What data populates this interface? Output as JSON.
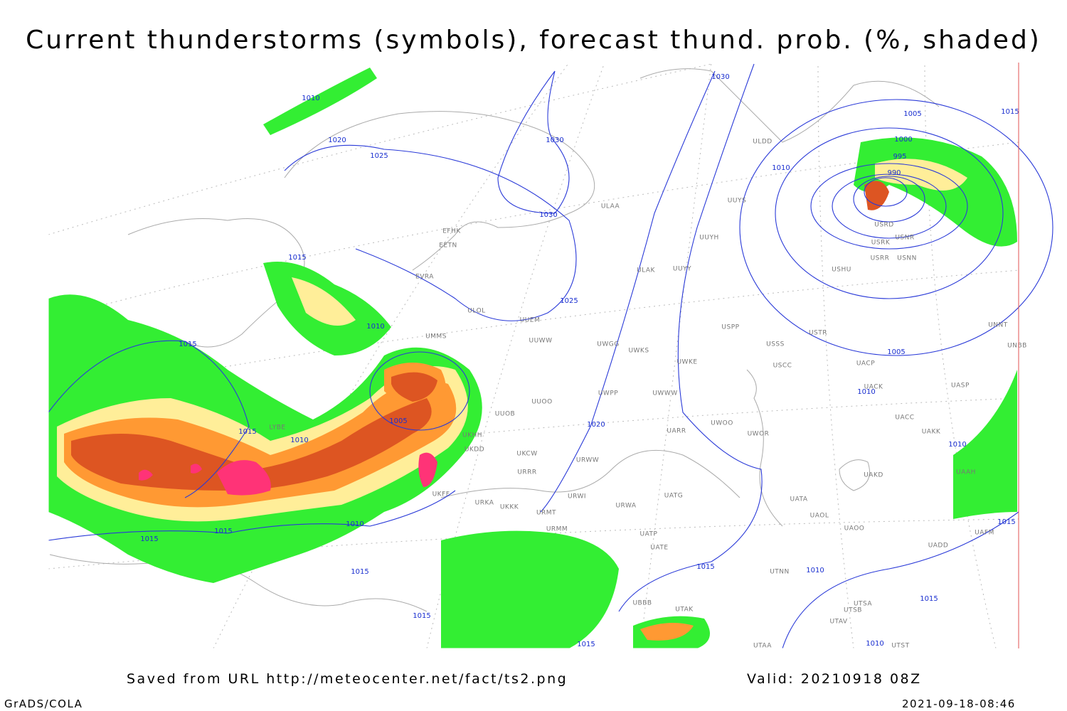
{
  "header": {
    "title": "Current thunderstorms (symbols), forecast thund. prob. (%, shaded)"
  },
  "footer": {
    "saved": "Saved from URL http://meteocenter.net/fact/ts2.png",
    "valid": "Valid: 20210918 08Z",
    "software": "GrADS/COLA",
    "timestamp": "2021-09-18-08:46"
  },
  "isobar_labels": [
    "1030",
    "1010",
    "1020",
    "1025",
    "1030",
    "1030",
    "1005",
    "1000",
    "995",
    "990",
    "1010",
    "1015",
    "1015",
    "1010",
    "1015",
    "1005",
    "1015",
    "1010",
    "1020",
    "1025",
    "1010",
    "1005",
    "1010",
    "1015",
    "1015",
    "1010",
    "1015",
    "1015",
    "1010",
    "1015",
    "1015",
    "1010",
    "1015",
    "1015"
  ],
  "stations": [
    "EFHK",
    "EETN",
    "EVRA",
    "ULOL",
    "UMMS",
    "UUEM",
    "UUWW",
    "ULAA",
    "ULDD",
    "UUYS",
    "UUYH",
    "ULAK",
    "UUYY",
    "USPP",
    "USSS",
    "USTR",
    "UWKS",
    "UWGG",
    "UWKE",
    "USCC",
    "UACP",
    "UACK",
    "UASP",
    "UNNT",
    "UNBB",
    "USRK",
    "USNR",
    "USRR",
    "USNN",
    "USHU",
    "USRD",
    "UWPP",
    "UWWW",
    "UUOO",
    "UUOB",
    "UKHH",
    "UKDD",
    "UKCW",
    "URRR",
    "URWW",
    "URWI",
    "UATG",
    "URWA",
    "UATP",
    "UATE",
    "URMT",
    "URMM",
    "UARR",
    "UWOO",
    "UWOR",
    "UACC",
    "UAKK",
    "UAKD",
    "UAAH",
    "UATA",
    "UAOL",
    "UAOO",
    "UADD",
    "UAFM",
    "UTNN",
    "UBBB",
    "UTAK",
    "UTSA",
    "UTSB",
    "UTAV",
    "UTAA",
    "UTST",
    "UKFF",
    "UKKK",
    "URKA",
    "LYBE"
  ]
}
